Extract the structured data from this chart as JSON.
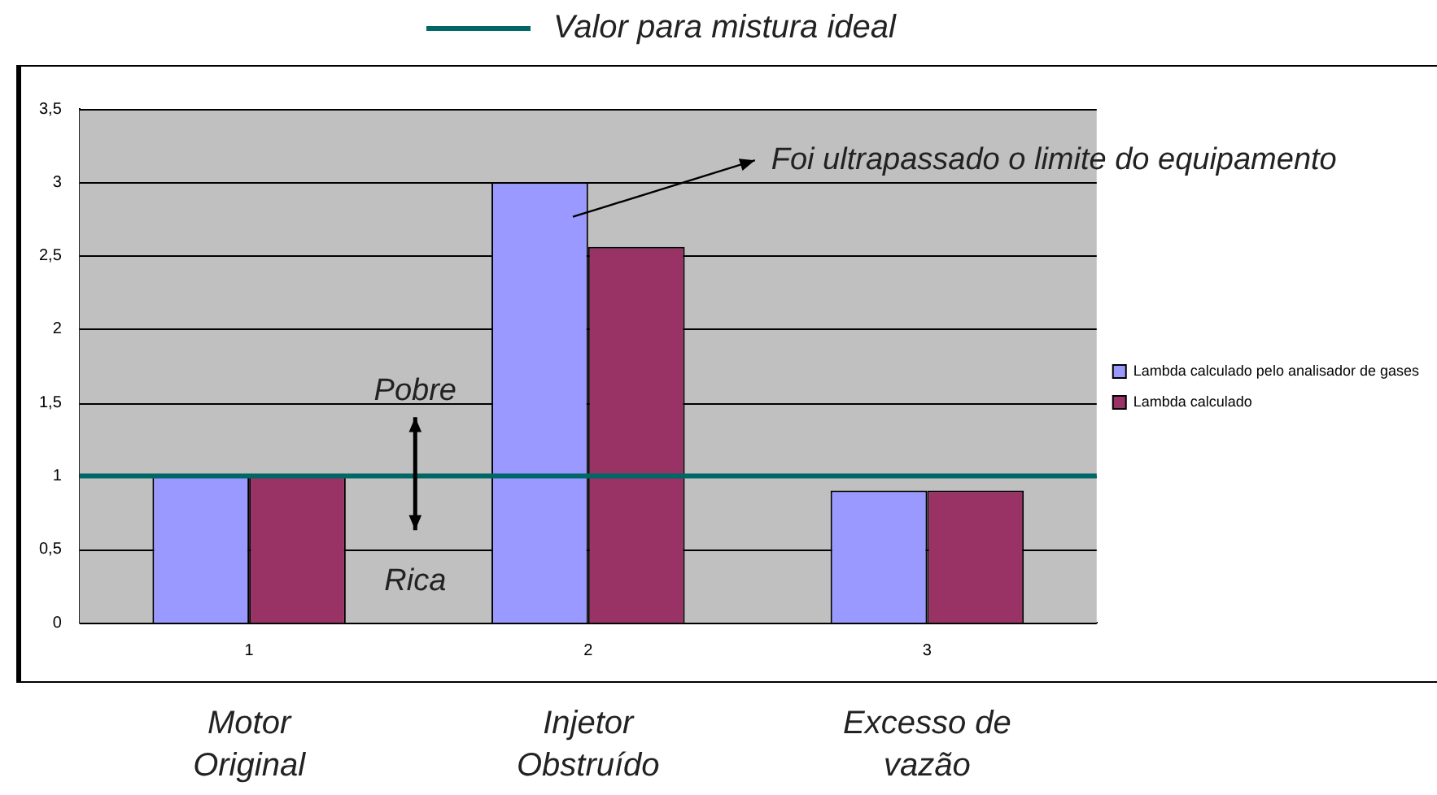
{
  "chart_data": {
    "type": "bar",
    "categories": [
      "1",
      "2",
      "3"
    ],
    "series": [
      {
        "name": "Lambda calculado pelo analisador de gases",
        "color": "#9999ff",
        "values": [
          1,
          3,
          0.9
        ]
      },
      {
        "name": "Lambda calculado",
        "color": "#993366",
        "values": [
          1,
          2.56,
          0.9
        ]
      }
    ],
    "ylim": [
      0,
      3.5
    ],
    "yticks": [
      {
        "value": 0,
        "label": "0"
      },
      {
        "value": 0.5,
        "label": "0,5"
      },
      {
        "value": 1,
        "label": "1"
      },
      {
        "value": 1.5,
        "label": "1,5"
      },
      {
        "value": 2,
        "label": "2"
      },
      {
        "value": 2.5,
        "label": "2,5"
      },
      {
        "value": 3,
        "label": "3"
      },
      {
        "value": 3.5,
        "label": "3,5"
      }
    ],
    "grid": "y",
    "legend": "right",
    "ref_lines": [
      {
        "axis": "y",
        "value": 1,
        "label": "Valor para mistura ideal",
        "color": "#006666"
      }
    ],
    "annotations": [
      "Foi ultrapassado o limite do equipamento",
      "Pobre",
      "Rica",
      "Motor Original",
      "Injetor Obstruído",
      "Excesso de vazão"
    ]
  }
}
